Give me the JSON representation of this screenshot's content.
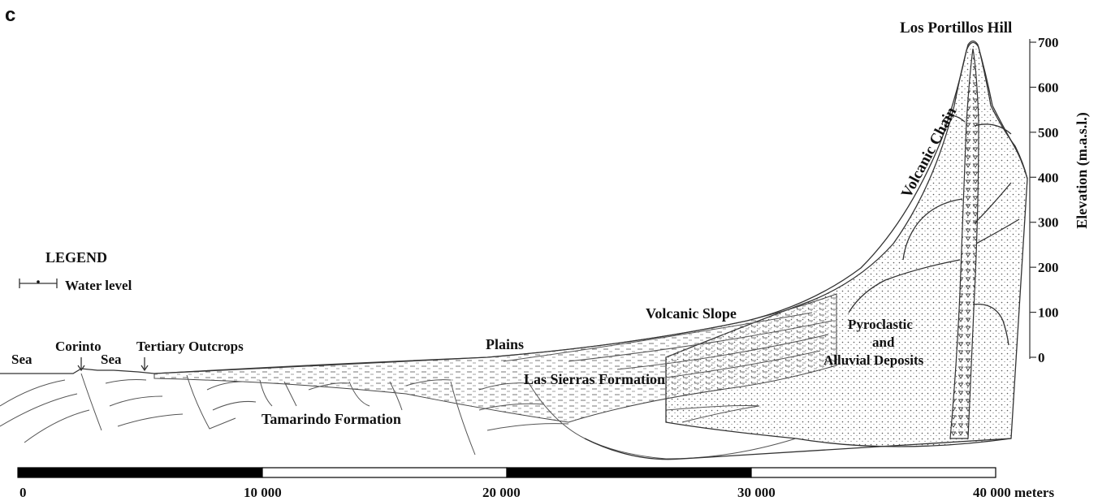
{
  "panel_label": "c",
  "labels": {
    "summit": "Los Portillos Hill",
    "volcanic_chain": "Volcanic Chain",
    "volcanic_slope": "Volcanic Slope",
    "plains": "Plains",
    "sea_left": "Sea",
    "corinto": "Corinto",
    "sea_right": "Sea",
    "tertiary": "Tertiary Outcrops",
    "las_sierras": "Las Sierras Formation",
    "tamarindo": "Tamarindo Formation",
    "pyro_1": "Pyroclastic",
    "pyro_2": "and",
    "pyro_3": "Alluvial Deposits"
  },
  "legend": {
    "title": "LEGEND",
    "item": "Water level"
  },
  "elevation_axis": {
    "label": "Elevation (m.a.s.l.)",
    "ticks": [
      "700",
      "600",
      "500",
      "400",
      "300",
      "200",
      "100",
      "0"
    ]
  },
  "scale_bar": {
    "ticks": [
      "0",
      "10 000",
      "20 000",
      "30 000",
      "40 000 meters"
    ],
    "segments": [
      "black",
      "white",
      "black",
      "white"
    ]
  },
  "colors": {
    "line": "#333333",
    "text": "#111111",
    "bar_dark": "#000000",
    "bar_light": "#ffffff"
  }
}
